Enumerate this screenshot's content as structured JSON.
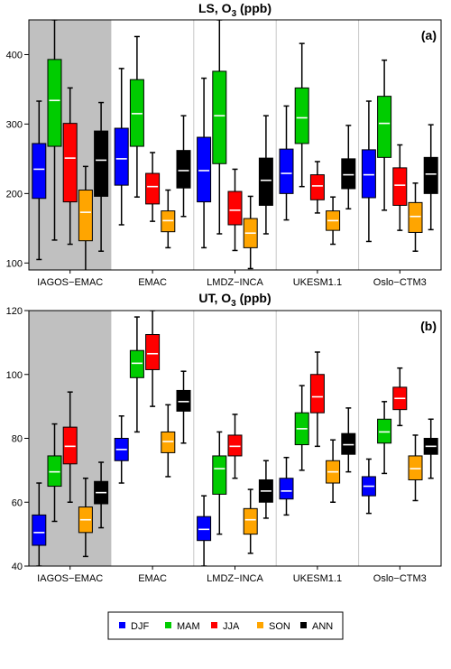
{
  "colors": {
    "DJF": "#0000ff",
    "MAM": "#00cc00",
    "JJA": "#ff0000",
    "SON": "#ffa500",
    "ANN": "#000000",
    "obs_shade": "#c0c0c0",
    "divider": "#c8c8c8",
    "median": "#ffffff"
  },
  "legend": {
    "items": [
      "DJF",
      "MAM",
      "JJA",
      "SON",
      "ANN"
    ]
  },
  "chart_data": [
    {
      "type": "box",
      "title": "LS, O3 (ppb)",
      "title_main": "LS, O",
      "title_sub": "3",
      "title_unit": " (ppb)",
      "panel_label": "(a)",
      "categories": [
        "IAGOS−EMAC",
        "EMAC",
        "LMDZ−INCA",
        "UKESM1.1",
        "Oslo−CTM3"
      ],
      "ylim": [
        90,
        450
      ],
      "yticks": [
        100,
        200,
        300,
        400
      ],
      "shaded_category": "IAGOS−EMAC",
      "series": [
        {
          "name": "DJF",
          "boxes": [
            {
              "whislo": 105,
              "q1": 193,
              "med": 235,
              "q3": 272,
              "whishi": 333
            },
            {
              "whislo": 155,
              "q1": 212,
              "med": 250,
              "q3": 294,
              "whishi": 380
            },
            {
              "whislo": 122,
              "q1": 188,
              "med": 233,
              "q3": 281,
              "whishi": 366
            },
            {
              "whislo": 162,
              "q1": 200,
              "med": 229,
              "q3": 264,
              "whishi": 326
            },
            {
              "whislo": 131,
              "q1": 194,
              "med": 227,
              "q3": 263,
              "whishi": 333
            }
          ]
        },
        {
          "name": "MAM",
          "boxes": [
            {
              "whislo": 133,
              "q1": 268,
              "med": 334,
              "q3": 393,
              "whishi": 450
            },
            {
              "whislo": 195,
              "q1": 268,
              "med": 315,
              "q3": 364,
              "whishi": 426
            },
            {
              "whislo": 142,
              "q1": 243,
              "med": 312,
              "q3": 376,
              "whishi": 450
            },
            {
              "whislo": 210,
              "q1": 272,
              "med": 309,
              "q3": 352,
              "whishi": 416
            },
            {
              "whislo": 176,
              "q1": 252,
              "med": 301,
              "q3": 340,
              "whishi": 392
            }
          ]
        },
        {
          "name": "JJA",
          "boxes": [
            {
              "whislo": 127,
              "q1": 188,
              "med": 251,
              "q3": 301,
              "whishi": 352
            },
            {
              "whislo": 160,
              "q1": 185,
              "med": 210,
              "q3": 229,
              "whishi": 259
            },
            {
              "whislo": 118,
              "q1": 155,
              "med": 176,
              "q3": 203,
              "whishi": 235
            },
            {
              "whislo": 172,
              "q1": 191,
              "med": 211,
              "q3": 227,
              "whishi": 246
            },
            {
              "whislo": 147,
              "q1": 183,
              "med": 212,
              "q3": 237,
              "whishi": 270
            }
          ]
        },
        {
          "name": "SON",
          "boxes": [
            {
              "whislo": 88,
              "q1": 132,
              "med": 173,
              "q3": 205,
              "whishi": 239
            },
            {
              "whislo": 122,
              "q1": 145,
              "med": 161,
              "q3": 175,
              "whishi": 205
            },
            {
              "whislo": 92,
              "q1": 122,
              "med": 143,
              "q3": 164,
              "whishi": 196
            },
            {
              "whislo": 127,
              "q1": 147,
              "med": 161,
              "q3": 175,
              "whishi": 195
            },
            {
              "whislo": 117,
              "q1": 144,
              "med": 167,
              "q3": 187,
              "whishi": 215
            }
          ]
        },
        {
          "name": "ANN",
          "boxes": [
            {
              "whislo": 117,
              "q1": 196,
              "med": 248,
              "q3": 290,
              "whishi": 331
            },
            {
              "whislo": 167,
              "q1": 208,
              "med": 233,
              "q3": 262,
              "whishi": 312
            },
            {
              "whislo": 142,
              "q1": 183,
              "med": 219,
              "q3": 251,
              "whishi": 312
            },
            {
              "whislo": 178,
              "q1": 207,
              "med": 227,
              "q3": 250,
              "whishi": 298
            },
            {
              "whislo": 148,
              "q1": 200,
              "med": 228,
              "q3": 252,
              "whishi": 299
            }
          ]
        }
      ]
    },
    {
      "type": "box",
      "title": "UT, O3 (ppb)",
      "title_main": "UT, O",
      "title_sub": "3",
      "title_unit": " (ppb)",
      "panel_label": "(b)",
      "categories": [
        "IAGOS−EMAC",
        "EMAC",
        "LMDZ−INCA",
        "UKESM1.1",
        "Oslo−CTM3"
      ],
      "ylim": [
        40,
        120
      ],
      "yticks": [
        40,
        60,
        80,
        100,
        120
      ],
      "shaded_category": "IAGOS−EMAC",
      "series": [
        {
          "name": "DJF",
          "boxes": [
            {
              "whislo": 40,
              "q1": 46.5,
              "med": 50.5,
              "q3": 56,
              "whishi": 66
            },
            {
              "whislo": 66,
              "q1": 73,
              "med": 76.5,
              "q3": 80,
              "whishi": 87
            },
            {
              "whislo": 40,
              "q1": 48,
              "med": 51.5,
              "q3": 55.5,
              "whishi": 62
            },
            {
              "whislo": 56,
              "q1": 61,
              "med": 63.5,
              "q3": 67.5,
              "whishi": 74
            },
            {
              "whislo": 56.5,
              "q1": 62,
              "med": 65,
              "q3": 68,
              "whishi": 73.5
            }
          ]
        },
        {
          "name": "MAM",
          "boxes": [
            {
              "whislo": 54,
              "q1": 65,
              "med": 69.5,
              "q3": 74.5,
              "whishi": 84.5
            },
            {
              "whislo": 82,
              "q1": 99,
              "med": 103.5,
              "q3": 107.5,
              "whishi": 118
            },
            {
              "whislo": 50,
              "q1": 62.5,
              "med": 70.5,
              "q3": 74.5,
              "whishi": 82
            },
            {
              "whislo": 70,
              "q1": 78,
              "med": 83,
              "q3": 88,
              "whishi": 96.5
            },
            {
              "whislo": 69,
              "q1": 78.5,
              "med": 82,
              "q3": 86,
              "whishi": 91.5
            }
          ]
        },
        {
          "name": "JJA",
          "boxes": [
            {
              "whislo": 60,
              "q1": 72,
              "med": 77.5,
              "q3": 83.5,
              "whishi": 94.5
            },
            {
              "whislo": 90,
              "q1": 101.5,
              "med": 106.5,
              "q3": 112.5,
              "whishi": 120
            },
            {
              "whislo": 67.5,
              "q1": 74.5,
              "med": 77.5,
              "q3": 81,
              "whishi": 87.5
            },
            {
              "whislo": 77.5,
              "q1": 88,
              "med": 93,
              "q3": 100,
              "whishi": 107
            },
            {
              "whislo": 84,
              "q1": 89,
              "med": 92.5,
              "q3": 96,
              "whishi": 102
            }
          ]
        },
        {
          "name": "SON",
          "boxes": [
            {
              "whislo": 43,
              "q1": 50.5,
              "med": 54.5,
              "q3": 58.5,
              "whishi": 67.5
            },
            {
              "whislo": 68,
              "q1": 75.5,
              "med": 79,
              "q3": 82,
              "whishi": 90.5
            },
            {
              "whislo": 44,
              "q1": 50,
              "med": 54.5,
              "q3": 58,
              "whishi": 64
            },
            {
              "whislo": 60,
              "q1": 66,
              "med": 69.5,
              "q3": 73,
              "whishi": 79.5
            },
            {
              "whislo": 60.5,
              "q1": 67,
              "med": 70.5,
              "q3": 74.5,
              "whishi": 81
            }
          ]
        },
        {
          "name": "ANN",
          "boxes": [
            {
              "whislo": 52,
              "q1": 59.5,
              "med": 63,
              "q3": 66.5,
              "whishi": 72.5
            },
            {
              "whislo": 78.5,
              "q1": 88.5,
              "med": 91.5,
              "q3": 95,
              "whishi": 101
            },
            {
              "whislo": 55,
              "q1": 60,
              "med": 63.5,
              "q3": 67,
              "whishi": 73
            },
            {
              "whislo": 69.5,
              "q1": 75,
              "med": 78,
              "q3": 81.5,
              "whishi": 89.5
            },
            {
              "whislo": 67.5,
              "q1": 75,
              "med": 77.5,
              "q3": 80,
              "whishi": 86
            }
          ]
        }
      ]
    }
  ]
}
